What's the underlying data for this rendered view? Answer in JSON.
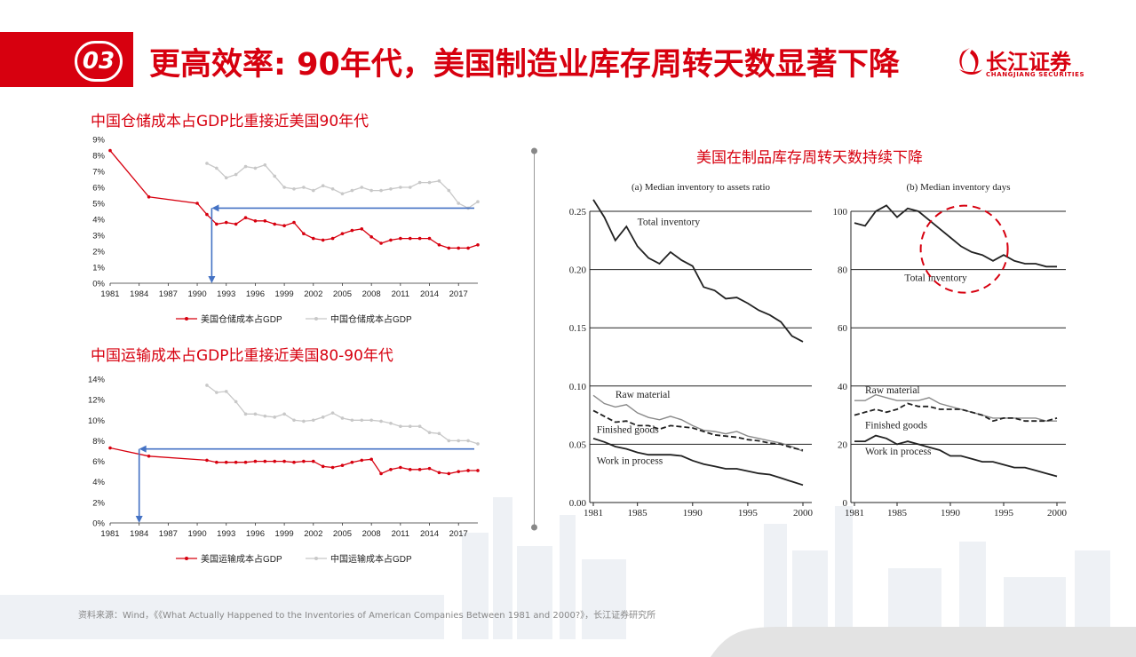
{
  "header": {
    "badge": "03",
    "title": "更高效率: 90年代，美国制造业库存周转天数显著下降",
    "logo_cn": "长江证券",
    "logo_en": "CHANGJIANG SECURITIES",
    "accent": "#d7000f"
  },
  "left_top": {
    "heading": "中国仓储成本占GDP比重接近美国90年代"
  },
  "left_bottom": {
    "heading": "中国运输成本占GDP比重接近美国80-90年代"
  },
  "right": {
    "heading": "美国在制品库存周转天数持续下降"
  },
  "source": "资料来源：Wind，《《What Actually Happened to the Inventories of American Companies Between 1981 and 2000?》，长江证券研究所",
  "chart_data": [
    {
      "type": "line",
      "x_ticks": [
        "1981",
        "1984",
        "1987",
        "1990",
        "1993",
        "1996",
        "1999",
        "2002",
        "2005",
        "2008",
        "2011",
        "2014",
        "2017"
      ],
      "y_ticks": [
        "0%",
        "1%",
        "2%",
        "3%",
        "4%",
        "5%",
        "6%",
        "7%",
        "8%",
        "9%"
      ],
      "ylim": [
        0,
        9
      ],
      "xlim": [
        1981,
        2019
      ],
      "series": [
        {
          "name": "美国仓储成本占GDP",
          "color": "#d7000f",
          "x": [
            1981,
            1985,
            1990,
            1991,
            1992,
            1993,
            1994,
            1995,
            1996,
            1997,
            1998,
            1999,
            2000,
            2001,
            2002,
            2003,
            2004,
            2005,
            2006,
            2007,
            2008,
            2009,
            2010,
            2011,
            2012,
            2013,
            2014,
            2015,
            2016,
            2017,
            2018,
            2019
          ],
          "y": [
            8.3,
            5.4,
            5.0,
            4.3,
            3.7,
            3.8,
            3.7,
            4.1,
            3.9,
            3.9,
            3.7,
            3.6,
            3.8,
            3.1,
            2.8,
            2.7,
            2.8,
            3.1,
            3.3,
            3.4,
            2.9,
            2.5,
            2.7,
            2.8,
            2.8,
            2.8,
            2.8,
            2.4,
            2.2,
            2.2,
            2.2,
            2.4
          ]
        },
        {
          "name": "中国仓储成本占GDP",
          "color": "#c8c8c8",
          "x": [
            1991,
            1992,
            1993,
            1994,
            1995,
            1996,
            1997,
            1998,
            1999,
            2000,
            2001,
            2002,
            2003,
            2004,
            2005,
            2006,
            2007,
            2008,
            2009,
            2010,
            2011,
            2012,
            2013,
            2014,
            2015,
            2016,
            2017,
            2018,
            2019
          ],
          "y": [
            7.5,
            7.2,
            6.6,
            6.8,
            7.3,
            7.2,
            7.4,
            6.7,
            6.0,
            5.9,
            6.0,
            5.8,
            6.1,
            5.9,
            5.6,
            5.8,
            6.0,
            5.8,
            5.8,
            5.9,
            6.0,
            6.0,
            6.3,
            6.3,
            6.4,
            5.8,
            5.0,
            4.7,
            5.1
          ]
        }
      ],
      "annotations": {
        "arrow_level": 4.7,
        "arrow_year": 1991.5
      }
    },
    {
      "type": "line",
      "x_ticks": [
        "1981",
        "1984",
        "1987",
        "1990",
        "1993",
        "1996",
        "1999",
        "2002",
        "2005",
        "2008",
        "2011",
        "2014",
        "2017"
      ],
      "y_ticks": [
        "0%",
        "2%",
        "4%",
        "6%",
        "8%",
        "10%",
        "12%",
        "14%"
      ],
      "ylim": [
        0,
        14
      ],
      "xlim": [
        1981,
        2019
      ],
      "series": [
        {
          "name": "美国运输成本占GDP",
          "color": "#d7000f",
          "x": [
            1981,
            1985,
            1991,
            1992,
            1993,
            1994,
            1995,
            1996,
            1997,
            1998,
            1999,
            2000,
            2001,
            2002,
            2003,
            2004,
            2005,
            2006,
            2007,
            2008,
            2009,
            2010,
            2011,
            2012,
            2013,
            2014,
            2015,
            2016,
            2017,
            2018,
            2019
          ],
          "y": [
            7.3,
            6.5,
            6.1,
            5.9,
            5.9,
            5.9,
            5.9,
            6.0,
            6.0,
            6.0,
            6.0,
            5.9,
            6.0,
            6.0,
            5.5,
            5.4,
            5.6,
            5.9,
            6.1,
            6.2,
            4.8,
            5.2,
            5.4,
            5.2,
            5.2,
            5.3,
            4.9,
            4.8,
            5.0,
            5.1,
            5.1
          ]
        },
        {
          "name": "中国运输成本占GDP",
          "color": "#c8c8c8",
          "x": [
            1991,
            1992,
            1993,
            1994,
            1995,
            1996,
            1997,
            1998,
            1999,
            2000,
            2001,
            2002,
            2003,
            2004,
            2005,
            2006,
            2007,
            2008,
            2009,
            2010,
            2011,
            2012,
            2013,
            2014,
            2015,
            2016,
            2017,
            2018,
            2019
          ],
          "y": [
            13.4,
            12.7,
            12.8,
            11.8,
            10.6,
            10.6,
            10.4,
            10.3,
            10.6,
            10.0,
            9.9,
            10.0,
            10.3,
            10.7,
            10.2,
            10.0,
            10.0,
            10.0,
            9.9,
            9.7,
            9.4,
            9.4,
            9.4,
            8.8,
            8.7,
            8.0,
            8.0,
            8.0,
            7.7
          ]
        }
      ],
      "annotations": {
        "arrow_level": 7.2,
        "arrow_year": 1984
      }
    },
    {
      "type": "line",
      "title": "(a) Median inventory to assets ratio",
      "x_ticks": [
        "1981",
        "1985",
        "1990",
        "1995",
        "2000"
      ],
      "y_ticks": [
        "0.00",
        "0.05",
        "0.10",
        "0.15",
        "0.20",
        "0.25"
      ],
      "ylim": [
        0,
        0.25
      ],
      "xlim": [
        1981,
        2000
      ],
      "series": [
        {
          "name": "Total inventory",
          "style": "solid",
          "x": [
            1981,
            1982,
            1983,
            1984,
            1985,
            1986,
            1987,
            1988,
            1989,
            1990,
            1991,
            1992,
            1993,
            1994,
            1995,
            1996,
            1997,
            1998,
            1999,
            2000
          ],
          "y": [
            0.26,
            0.245,
            0.225,
            0.237,
            0.22,
            0.21,
            0.205,
            0.215,
            0.208,
            0.203,
            0.185,
            0.182,
            0.175,
            0.176,
            0.171,
            0.165,
            0.161,
            0.155,
            0.143,
            0.138
          ]
        },
        {
          "name": "Raw material",
          "style": "gray",
          "x": [
            1981,
            1982,
            1983,
            1984,
            1985,
            1986,
            1987,
            1988,
            1989,
            1990,
            1991,
            1992,
            1993,
            1994,
            1995,
            1996,
            1997,
            1998,
            1999,
            2000
          ],
          "y": [
            0.092,
            0.085,
            0.082,
            0.084,
            0.077,
            0.073,
            0.071,
            0.074,
            0.071,
            0.066,
            0.062,
            0.061,
            0.059,
            0.061,
            0.057,
            0.055,
            0.053,
            0.051,
            0.048,
            0.044
          ]
        },
        {
          "name": "Finished goods",
          "style": "dashed",
          "x": [
            1981,
            1982,
            1983,
            1984,
            1985,
            1986,
            1987,
            1988,
            1989,
            1990,
            1991,
            1992,
            1993,
            1994,
            1995,
            1996,
            1997,
            1998,
            1999,
            2000
          ],
          "y": [
            0.079,
            0.074,
            0.069,
            0.07,
            0.066,
            0.066,
            0.063,
            0.066,
            0.065,
            0.064,
            0.061,
            0.058,
            0.057,
            0.056,
            0.054,
            0.053,
            0.051,
            0.05,
            0.047,
            0.045
          ]
        },
        {
          "name": "Work in process",
          "style": "solid",
          "x": [
            1981,
            1982,
            1983,
            1984,
            1985,
            1986,
            1987,
            1988,
            1989,
            1990,
            1991,
            1992,
            1993,
            1994,
            1995,
            1996,
            1997,
            1998,
            1999,
            2000
          ],
          "y": [
            0.055,
            0.052,
            0.048,
            0.046,
            0.043,
            0.041,
            0.041,
            0.041,
            0.04,
            0.036,
            0.033,
            0.031,
            0.029,
            0.029,
            0.027,
            0.025,
            0.024,
            0.021,
            0.018,
            0.015
          ]
        }
      ]
    },
    {
      "type": "line",
      "title": "(b) Median inventory days",
      "x_ticks": [
        "1981",
        "1985",
        "1990",
        "1995",
        "2000"
      ],
      "y_ticks": [
        "0",
        "20",
        "40",
        "60",
        "80",
        "100"
      ],
      "ylim": [
        0,
        100
      ],
      "xlim": [
        1981,
        2000
      ],
      "series": [
        {
          "name": "Total inventory",
          "style": "solid",
          "x": [
            1981,
            1982,
            1983,
            1984,
            1985,
            1986,
            1987,
            1988,
            1989,
            1990,
            1991,
            1992,
            1993,
            1994,
            1995,
            1996,
            1997,
            1998,
            1999,
            2000
          ],
          "y": [
            96,
            95,
            100,
            102,
            98,
            101,
            100,
            97,
            94,
            91,
            88,
            86,
            85,
            83,
            85,
            83,
            82,
            82,
            81,
            81
          ]
        },
        {
          "name": "Raw material",
          "style": "gray",
          "x": [
            1981,
            1982,
            1983,
            1984,
            1985,
            1986,
            1987,
            1988,
            1989,
            1990,
            1991,
            1992,
            1993,
            1994,
            1995,
            1996,
            1997,
            1998,
            1999,
            2000
          ],
          "y": [
            35,
            35,
            37,
            36,
            35,
            35,
            35,
            36,
            34,
            33,
            32,
            31,
            30,
            29,
            29,
            29,
            29,
            29,
            28,
            28
          ]
        },
        {
          "name": "Finished goods",
          "style": "dashed",
          "x": [
            1981,
            1982,
            1983,
            1984,
            1985,
            1986,
            1987,
            1988,
            1989,
            1990,
            1991,
            1992,
            1993,
            1994,
            1995,
            1996,
            1997,
            1998,
            1999,
            2000
          ],
          "y": [
            30,
            31,
            32,
            31,
            32,
            34,
            33,
            33,
            32,
            32,
            32,
            31,
            30,
            28,
            29,
            29,
            28,
            28,
            28,
            29
          ]
        },
        {
          "name": "Work in process",
          "style": "solid",
          "x": [
            1981,
            1982,
            1983,
            1984,
            1985,
            1986,
            1987,
            1988,
            1989,
            1990,
            1991,
            1992,
            1993,
            1994,
            1995,
            1996,
            1997,
            1998,
            1999,
            2000
          ],
          "y": [
            21,
            21,
            23,
            22,
            20,
            21,
            20,
            19,
            18,
            16,
            16,
            15,
            14,
            14,
            13,
            12,
            12,
            11,
            10,
            9
          ]
        }
      ]
    }
  ]
}
